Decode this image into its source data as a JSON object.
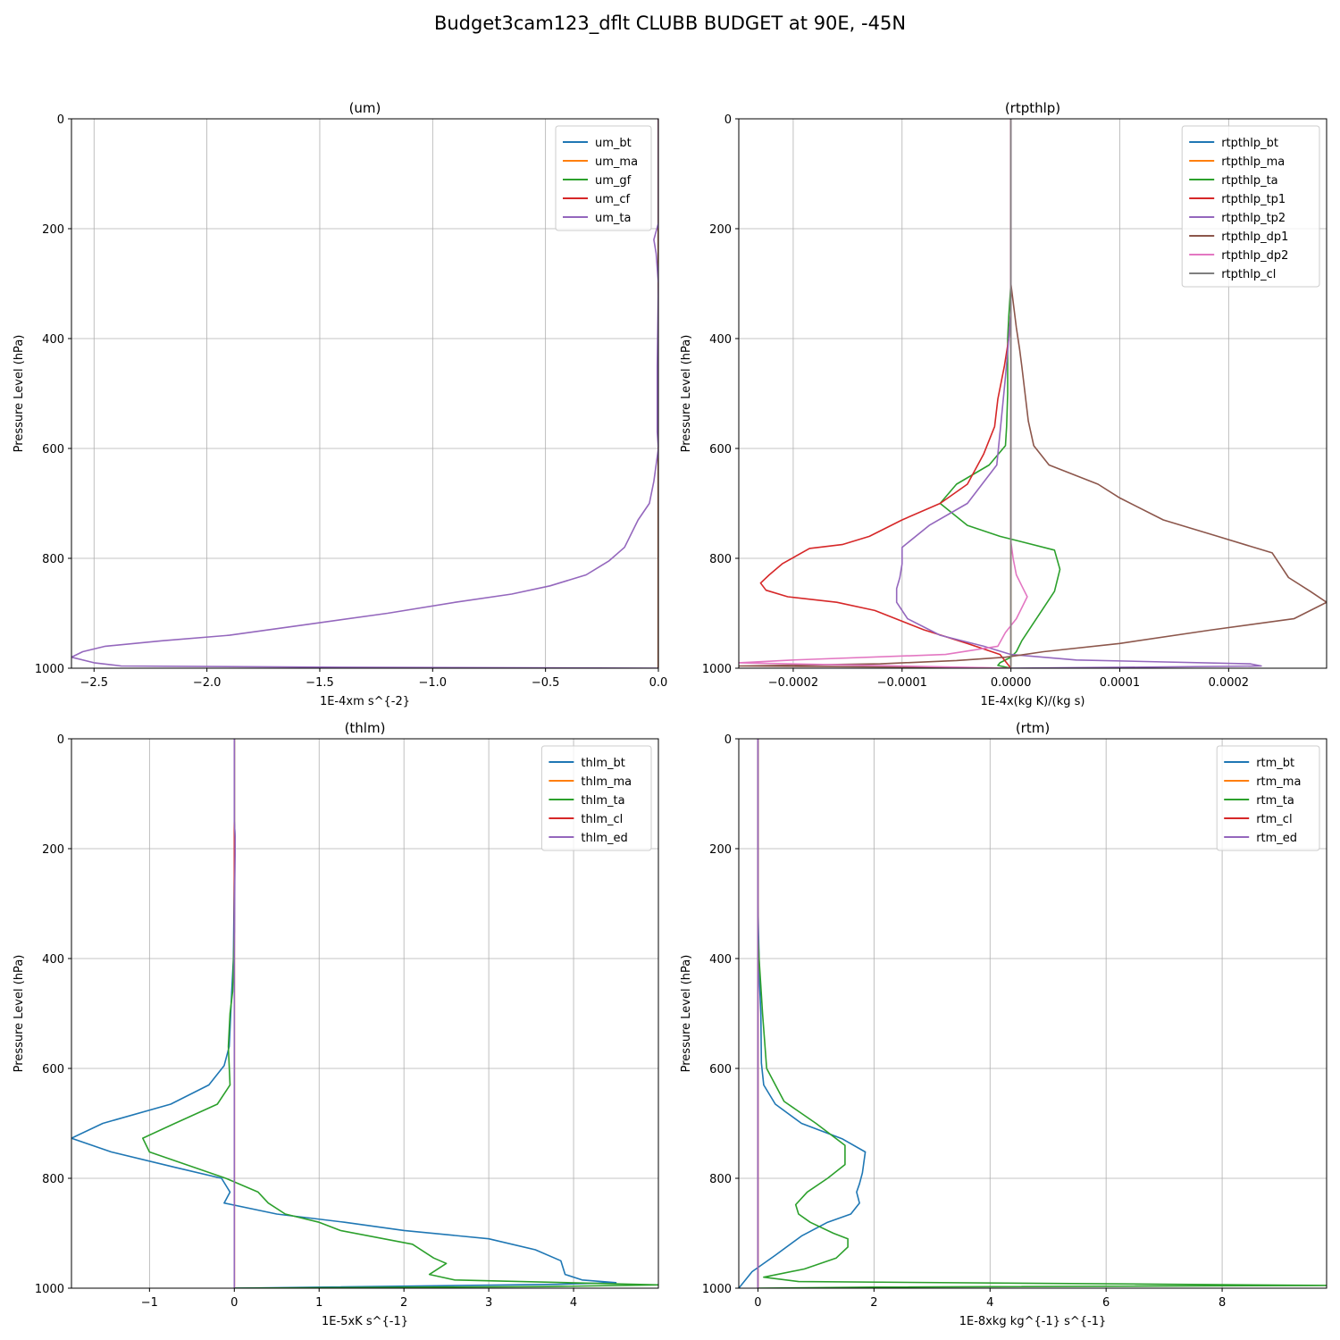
{
  "figure": {
    "title": "Budget3cam123_dflt CLUBB BUDGET at 90E, -45N"
  },
  "colors": {
    "c0": "#1f77b4",
    "c1": "#ff7f0e",
    "c2": "#2ca02c",
    "c3": "#d62728",
    "c4": "#9467bd",
    "c5": "#8c564b",
    "c6": "#e377c2",
    "c7": "#7f7f7f"
  },
  "chart_data": [
    {
      "type": "line",
      "title": "(um)",
      "xlabel": "1E-4xm s^{-2}",
      "ylabel": "Pressure Level (hPa)",
      "xlim": [
        -2.6,
        0.0
      ],
      "ylim": [
        1000,
        0
      ],
      "xticks": [
        -2.5,
        -2.0,
        -1.5,
        -1.0,
        -0.5,
        0.0
      ],
      "xtick_labels": [
        "−2.5",
        "−2.0",
        "−1.5",
        "−1.0",
        "−0.5",
        "0.0"
      ],
      "yticks": [
        0,
        200,
        400,
        600,
        800,
        1000
      ],
      "grid": true,
      "legend": "upper right",
      "series": [
        {
          "name": "um_bt",
          "color": "#1f77b4",
          "x": [
            0,
            0,
            0,
            0,
            0
          ],
          "y": [
            0,
            250,
            500,
            800,
            1000
          ]
        },
        {
          "name": "um_ma",
          "color": "#ff7f0e",
          "x": [
            0,
            0,
            0,
            0
          ],
          "y": [
            0,
            300,
            700,
            1000
          ]
        },
        {
          "name": "um_gf",
          "color": "#2ca02c",
          "x": [
            0,
            0,
            0,
            0
          ],
          "y": [
            0,
            300,
            700,
            1000
          ]
        },
        {
          "name": "um_cf",
          "color": "#d62728",
          "x": [
            0,
            0,
            0,
            0
          ],
          "y": [
            0,
            300,
            700,
            1000
          ]
        },
        {
          "name": "um_ta",
          "color": "#9467bd",
          "x": [
            0,
            0,
            -0.02,
            -0.01,
            0,
            -0.005,
            -0.005,
            0,
            -0.02,
            -0.04,
            -0.09,
            -0.15,
            -0.22,
            -0.32,
            -0.48,
            -0.65,
            -0.9,
            -1.2,
            -1.55,
            -1.9,
            -2.2,
            -2.45,
            -2.55,
            -2.6,
            -2.5,
            -2.38,
            -1.5,
            0
          ],
          "y": [
            0,
            190,
            220,
            245,
            300,
            450,
            570,
            600,
            660,
            700,
            730,
            780,
            805,
            830,
            850,
            865,
            880,
            900,
            920,
            940,
            950,
            960,
            970,
            980,
            990,
            996,
            998,
            1000
          ]
        }
      ]
    },
    {
      "type": "line",
      "title": "(rtpthlp)",
      "xlabel": "1E-4x(kg K)/(kg s)",
      "ylabel": "Pressure Level (hPa)",
      "xlim": [
        -0.00025,
        0.00029
      ],
      "ylim": [
        1000,
        0
      ],
      "xticks": [
        -0.0002,
        -0.0001,
        0.0,
        0.0001,
        0.0002
      ],
      "xtick_labels": [
        "−0.0002",
        "−0.0001",
        "0.0000",
        "0.0001",
        "0.0002"
      ],
      "yticks": [
        0,
        200,
        400,
        600,
        800,
        1000
      ],
      "grid": true,
      "legend": "upper right",
      "series": [
        {
          "name": "rtpthlp_bt",
          "color": "#1f77b4",
          "x": [
            0,
            0,
            0,
            0
          ],
          "y": [
            0,
            300,
            700,
            1000
          ]
        },
        {
          "name": "rtpthlp_ma",
          "color": "#ff7f0e",
          "x": [
            0,
            0,
            0,
            0
          ],
          "y": [
            0,
            300,
            700,
            1000
          ]
        },
        {
          "name": "rtpthlp_ta",
          "color": "#2ca02c",
          "x": [
            0,
            0,
            -2e-06,
            -3e-06,
            -3e-06,
            -4e-06,
            -5e-06,
            -2e-05,
            -5e-05,
            -6.5e-05,
            -4e-05,
            -1e-05,
            1e-05,
            4e-05,
            4.5e-05,
            4e-05,
            3e-05,
            2e-05,
            1e-05,
            5e-06,
            0,
            -1e-05,
            -1.2e-05,
            0
          ],
          "y": [
            0,
            300,
            360,
            400,
            500,
            560,
            595,
            630,
            665,
            700,
            740,
            760,
            770,
            785,
            820,
            860,
            890,
            920,
            950,
            970,
            980,
            990,
            995,
            1000
          ]
        },
        {
          "name": "rtpthlp_tp1",
          "color": "#d62728",
          "x": [
            0,
            0,
            -2e-06,
            -6e-06,
            -1.2e-05,
            -1.5e-05,
            -2.5e-05,
            -4e-05,
            -6.5e-05,
            -0.0001,
            -0.00013,
            -0.000155,
            -0.000185,
            -0.00021,
            -0.000222,
            -0.00023,
            -0.000225,
            -0.000205,
            -0.00016,
            -0.000125,
            -8e-05,
            -4e-05,
            -1e-05,
            0
          ],
          "y": [
            0,
            350,
            400,
            450,
            510,
            560,
            610,
            665,
            700,
            730,
            760,
            775,
            782,
            810,
            830,
            845,
            858,
            870,
            880,
            895,
            930,
            955,
            975,
            1000
          ]
        },
        {
          "name": "rtpthlp_tp2",
          "color": "#9467bd",
          "x": [
            0,
            0,
            -2e-06,
            -5e-06,
            -9e-06,
            -1.3e-05,
            -4e-05,
            -7.5e-05,
            -0.0001,
            -0.0001,
            -0.000102,
            -0.000105,
            -0.000105,
            -9.5e-05,
            -6.5e-05,
            -2.5e-05,
            0,
            6e-05,
            0.00022,
            0.00023,
            0.00012,
            0
          ],
          "y": [
            0,
            350,
            400,
            470,
            550,
            630,
            700,
            740,
            780,
            810,
            835,
            855,
            880,
            910,
            940,
            960,
            975,
            985,
            992,
            996,
            998,
            1000
          ]
        },
        {
          "name": "rtpthlp_dp1",
          "color": "#8c564b",
          "x": [
            0,
            0,
            5e-06,
            8e-06,
            1e-05,
            1.6e-05,
            2.1e-05,
            3.5e-05,
            8e-05,
            0.0001,
            0.00014,
            0.00019,
            0.00024,
            0.000255,
            0.000275,
            0.00029,
            0.00026,
            0.000185,
            0.0001,
            3e-05,
            -5e-06,
            -5e-05,
            -0.00012,
            -0.00025,
            -8e-05,
            0
          ],
          "y": [
            0,
            300,
            380,
            420,
            450,
            550,
            595,
            630,
            665,
            690,
            730,
            760,
            790,
            835,
            860,
            880,
            910,
            930,
            955,
            970,
            980,
            986,
            992,
            996,
            998,
            1000
          ]
        },
        {
          "name": "rtpthlp_dp2",
          "color": "#e377c2",
          "x": [
            0,
            0,
            0,
            2e-06,
            5e-06,
            1e-05,
            1.5e-05,
            1e-05,
            5e-06,
            -5e-06,
            -1.2e-05,
            -6e-05,
            -0.0002,
            -0.00025,
            0
          ],
          "y": [
            0,
            600,
            770,
            800,
            830,
            850,
            870,
            890,
            910,
            935,
            960,
            975,
            985,
            990,
            1000
          ]
        },
        {
          "name": "rtpthlp_cl",
          "color": "#7f7f7f",
          "x": [
            0,
            0,
            0,
            0
          ],
          "y": [
            0,
            300,
            700,
            1000
          ]
        }
      ]
    },
    {
      "type": "line",
      "title": "(thlm)",
      "xlabel": "1E-5xK s^{-1}",
      "ylabel": "Pressure Level (hPa)",
      "xlim": [
        -1.92,
        5.0
      ],
      "ylim": [
        1000,
        0
      ],
      "xticks": [
        -1,
        0,
        1,
        2,
        3,
        4
      ],
      "xtick_labels": [
        "−1",
        "0",
        "1",
        "2",
        "3",
        "4"
      ],
      "yticks": [
        0,
        200,
        400,
        600,
        800,
        1000
      ],
      "grid": true,
      "legend": "upper right",
      "series": [
        {
          "name": "thlm_bt",
          "color": "#1f77b4",
          "x": [
            0,
            0,
            0.01,
            0,
            -0.01,
            -0.03,
            -0.06,
            -0.12,
            -0.3,
            -0.75,
            -1.55,
            -1.92,
            -1.45,
            -0.7,
            -0.15,
            -0.05,
            -0.12,
            0.5,
            1.3,
            2.0,
            3.0,
            3.55,
            3.85,
            3.9,
            4.1,
            4.5,
            3.8,
            0
          ],
          "y": [
            0,
            150,
            180,
            250,
            400,
            460,
            560,
            595,
            630,
            665,
            700,
            727,
            752,
            780,
            800,
            825,
            845,
            865,
            880,
            895,
            910,
            930,
            950,
            975,
            985,
            990,
            993,
            1000
          ]
        },
        {
          "name": "thlm_ma",
          "color": "#ff7f0e",
          "x": [
            0,
            0,
            0,
            0
          ],
          "y": [
            0,
            300,
            700,
            1000
          ]
        },
        {
          "name": "thlm_ta",
          "color": "#2ca02c",
          "x": [
            0,
            0,
            -0.02,
            -0.05,
            -0.07,
            -0.05,
            -0.2,
            -0.7,
            -1.08,
            -1.0,
            -0.1,
            0.28,
            0.4,
            0.6,
            1.0,
            1.25,
            2.1,
            2.35,
            2.5,
            2.3,
            2.6,
            5.0,
            3.7,
            0
          ],
          "y": [
            0,
            350,
            460,
            500,
            560,
            630,
            665,
            700,
            727,
            752,
            800,
            825,
            845,
            865,
            880,
            895,
            920,
            945,
            955,
            975,
            985,
            994,
            997,
            1000
          ]
        },
        {
          "name": "thlm_cl",
          "color": "#d62728",
          "x": [
            0,
            0,
            0,
            0
          ],
          "y": [
            0,
            300,
            700,
            1000
          ]
        },
        {
          "name": "thlm_ed",
          "color": "#9467bd",
          "x": [
            0,
            0,
            0.01,
            0.01,
            0.005,
            0,
            0,
            0
          ],
          "y": [
            0,
            150,
            180,
            210,
            260,
            400,
            700,
            1000
          ]
        }
      ]
    },
    {
      "type": "line",
      "title": "(rtm)",
      "xlabel": "1E-8xkg kg^{-1} s^{-1}",
      "ylabel": "Pressure Level (hPa)",
      "xlim": [
        -0.33,
        9.8
      ],
      "ylim": [
        1000,
        0
      ],
      "xticks": [
        0,
        2,
        4,
        6,
        8
      ],
      "xtick_labels": [
        "0",
        "2",
        "4",
        "6",
        "8"
      ],
      "yticks": [
        0,
        200,
        400,
        600,
        800,
        1000
      ],
      "grid": true,
      "legend": "upper right",
      "series": [
        {
          "name": "rtm_bt",
          "color": "#1f77b4",
          "x": [
            0,
            0,
            0.02,
            0.03,
            0.05,
            0.06,
            0.1,
            0.3,
            0.75,
            1.45,
            1.85,
            1.8,
            1.75,
            1.7,
            1.75,
            1.6,
            1.2,
            0.75,
            0.3,
            -0.1,
            -0.33
          ],
          "y": [
            0,
            300,
            400,
            450,
            500,
            590,
            630,
            665,
            700,
            728,
            752,
            790,
            810,
            825,
            845,
            865,
            880,
            905,
            940,
            970,
            1000
          ]
        },
        {
          "name": "rtm_ma",
          "color": "#ff7f0e",
          "x": [
            0,
            0,
            0,
            0
          ],
          "y": [
            0,
            300,
            700,
            1000
          ]
        },
        {
          "name": "rtm_ta",
          "color": "#2ca02c",
          "x": [
            0,
            0,
            0.02,
            0.05,
            0.08,
            0.15,
            0.45,
            1.0,
            1.5,
            1.5,
            1.2,
            0.85,
            0.65,
            0.7,
            0.9,
            1.3,
            1.55,
            1.55,
            1.35,
            0.8,
            0.1,
            0.7,
            9.8,
            2.0,
            0
          ],
          "y": [
            0,
            350,
            400,
            450,
            500,
            600,
            660,
            700,
            740,
            775,
            800,
            825,
            848,
            865,
            880,
            900,
            910,
            925,
            945,
            965,
            980,
            988,
            995,
            998,
            1000
          ]
        },
        {
          "name": "rtm_cl",
          "color": "#d62728",
          "x": [
            0,
            0,
            0,
            0
          ],
          "y": [
            0,
            300,
            700,
            1000
          ]
        },
        {
          "name": "rtm_ed",
          "color": "#9467bd",
          "x": [
            0,
            0,
            0,
            0
          ],
          "y": [
            0,
            300,
            700,
            1000
          ]
        }
      ]
    }
  ]
}
